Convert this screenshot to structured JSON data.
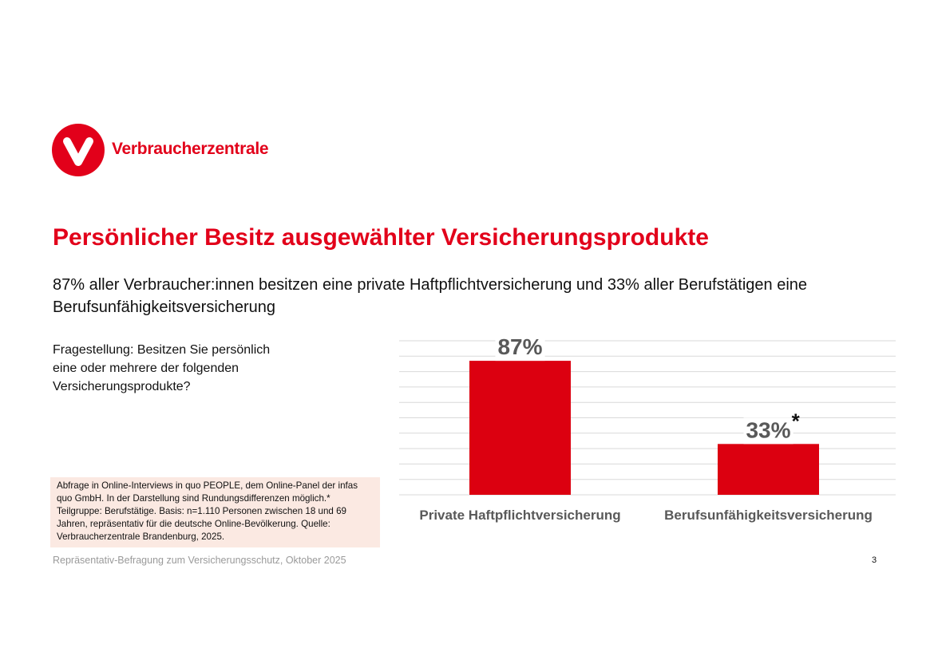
{
  "logo": {
    "text": "Verbraucherzentrale",
    "color": "#e2001a"
  },
  "title": "Persönlicher Besitz ausgewählter Versicherungsprodukte",
  "subtitle": "87% aller Verbraucher:innen besitzen eine private Haftpflichtversicherung und 33% aller Berufstätigen eine Berufsunfähigkeitsversicherung",
  "question": "Fragestellung: Besitzen Sie persönlich eine oder mehrere der folgenden Versicherungsprodukte?",
  "note": "Abfrage in Online-Interviews in quo PEOPLE, dem Online-Panel der infas quo GmbH. In der Darstellung sind Rundungsdifferenzen möglich.* Teilgruppe: Berufstätige. Basis: n=1.110 Personen zwischen 18 und 69 Jahren, repräsentativ für die deutsche Online-Bevölkerung. Quelle: Verbraucherzentrale Brandenburg, 2025.",
  "footer": "Repräsentativ-Befragung zum Versicherungsschutz, Oktober 2025",
  "page_number": "3",
  "chart_data": {
    "type": "bar",
    "categories": [
      "Private Haftpflichtversicherung",
      "Berufsunfähigkeitsversicherung"
    ],
    "values": [
      87,
      33
    ],
    "data_labels": [
      "87%",
      "33%"
    ],
    "label_suffixes": [
      "",
      "*"
    ],
    "ylim": [
      0,
      100
    ],
    "grid": true,
    "bar_color": "#dc0010",
    "label_color": "#595959"
  }
}
